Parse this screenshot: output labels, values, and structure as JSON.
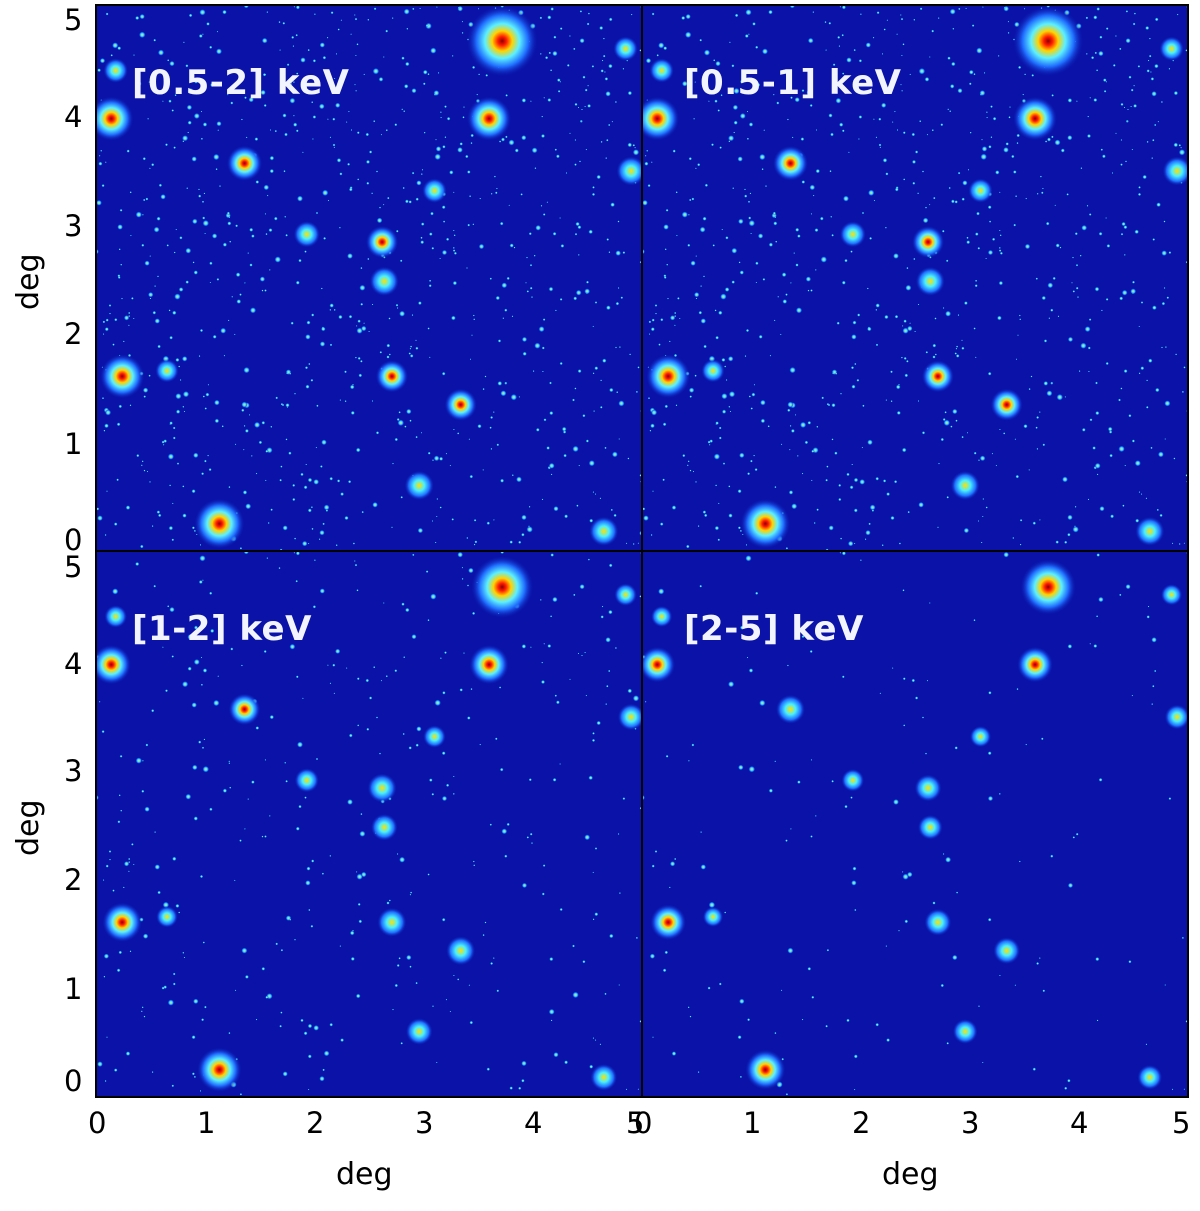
{
  "panels": [
    {
      "label": "[0.5-2] keV",
      "density": 1.0
    },
    {
      "label": "[0.5-1] keV",
      "density": 0.95
    },
    {
      "label": "[1-2] keV",
      "density": 0.45
    },
    {
      "label": "[2-5] keV",
      "density": 0.18
    }
  ],
  "axes": {
    "xlabel": "deg",
    "ylabel": "deg",
    "x_ticks_left": [
      "0",
      "1",
      "2",
      "3",
      "4"
    ],
    "x_tick_overlap": "5",
    "x_ticks_right": [
      "1",
      "2",
      "3",
      "4",
      "5"
    ],
    "y_ticks_top": [
      "5",
      "4",
      "3",
      "2",
      "1",
      "0"
    ],
    "y_ticks_bottom": [
      "5",
      "4",
      "3",
      "2",
      "1",
      "0"
    ],
    "range": [
      0,
      5
    ]
  },
  "colors": {
    "background": "#0a12a8",
    "faint_source": "#33ddff",
    "bright_source": "#ff2a00"
  },
  "bright_sources_deg": [
    [
      3.72,
      4.67,
      1.0
    ],
    [
      3.6,
      3.96,
      0.55
    ],
    [
      0.14,
      3.96,
      0.55
    ],
    [
      1.13,
      0.25,
      0.65
    ],
    [
      0.24,
      1.6,
      0.55
    ],
    [
      1.36,
      3.55,
      0.4
    ],
    [
      2.62,
      2.83,
      0.35
    ],
    [
      2.71,
      1.6,
      0.35
    ],
    [
      3.34,
      1.34,
      0.35
    ],
    [
      2.64,
      2.47,
      0.3
    ],
    [
      4.65,
      0.18,
      0.3
    ],
    [
      2.96,
      0.6,
      0.3
    ],
    [
      4.9,
      3.48,
      0.3
    ],
    [
      1.93,
      2.9,
      0.25
    ],
    [
      0.18,
      4.4,
      0.22
    ],
    [
      4.85,
      4.6,
      0.22
    ],
    [
      3.1,
      3.3,
      0.22
    ],
    [
      0.65,
      1.65,
      0.2
    ]
  ]
}
